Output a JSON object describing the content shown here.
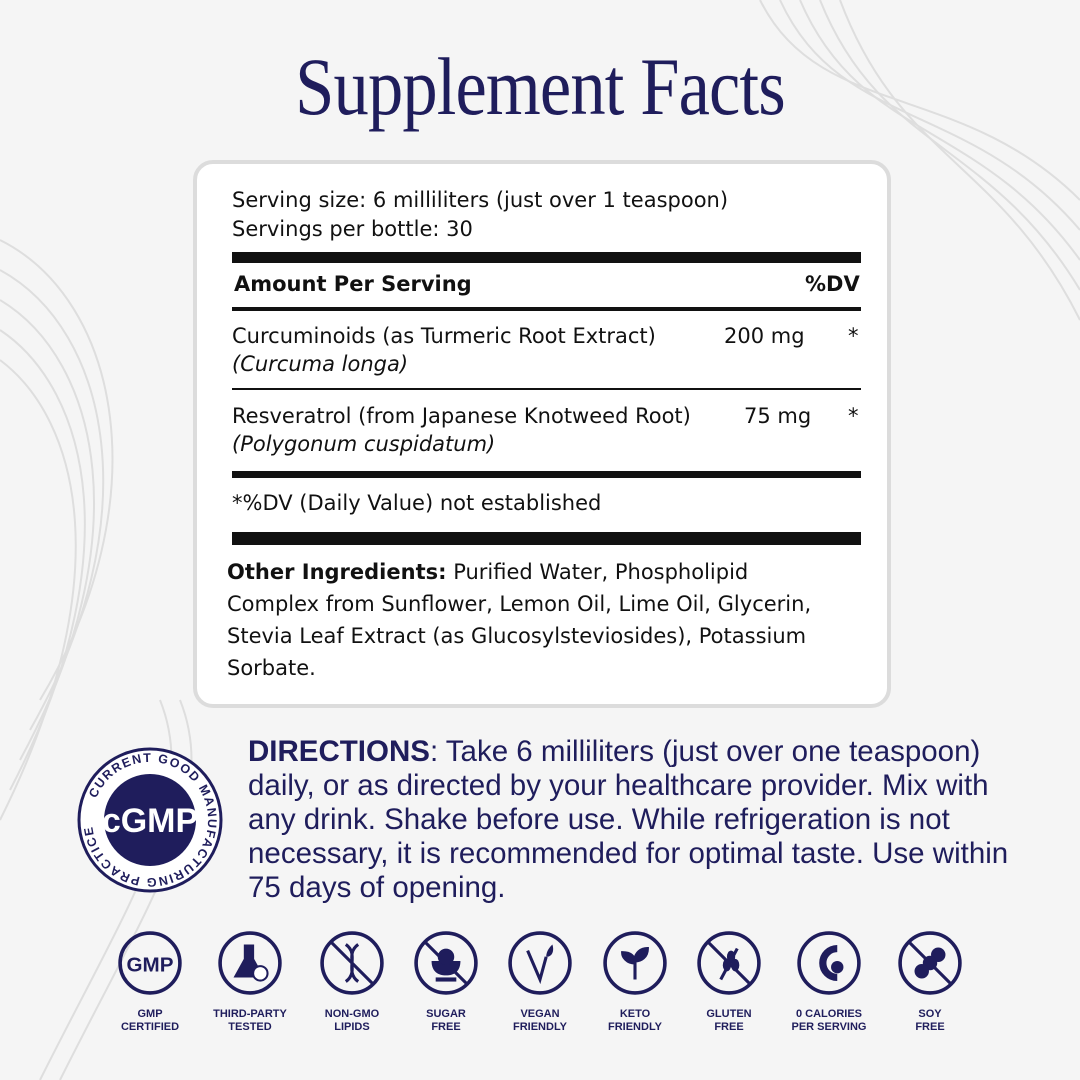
{
  "title": "Supplement Facts",
  "facts": {
    "serving_size": "Serving size: 6 milliliters (just over 1 teaspoon)",
    "servings_per_bottle": "Servings per bottle: 30",
    "header_amount": "Amount Per Serving",
    "header_dv": "%DV",
    "rows": [
      {
        "name": "Curcuminoids (as Turmeric Root Extract)",
        "latin": "(Curcuma longa)",
        "amount": "200 mg",
        "dv": "*"
      },
      {
        "name": "Resveratrol (from Japanese Knotweed Root)",
        "latin": "(Polygonum cuspidatum)",
        "amount": "75 mg",
        "dv": "*"
      }
    ],
    "footnote": "*%DV (Daily Value) not established",
    "other_label": "Other Ingredients:",
    "other_lines": [
      " Purified Water, Phospholipid",
      "Complex from Sunflower, Lemon Oil, Lime Oil, Glycerin,",
      "Stevia Leaf Extract (as Glucosylsteviosides), Potassium",
      "Sorbate."
    ]
  },
  "directions": {
    "label": "DIRECTIONS",
    "text": ": Take 6 milliliters  (just over one teaspoon) daily, or as directed by your healthcare provider. Mix with any drink. Shake before use. While refrigeration is not necessary, it is recommended for optimal taste. Use within 75 days of opening."
  },
  "seal": {
    "center": "cGMP",
    "ring": "CURRENT GOOD MANUFACTURING PRACTICE"
  },
  "badges": [
    {
      "icon": "gmp-icon",
      "l1": "GMP",
      "l2": "CERTIFIED",
      "text": "GMP"
    },
    {
      "icon": "flask-check-icon",
      "l1": "THIRD-PARTY",
      "l2": "TESTED"
    },
    {
      "icon": "dna-crossed-icon",
      "l1": "NON-GMO",
      "l2": "LIPIDS"
    },
    {
      "icon": "sugar-bowl-crossed-icon",
      "l1": "SUGAR",
      "l2": "FREE"
    },
    {
      "icon": "vegan-v-icon",
      "l1": "VEGAN",
      "l2": "FRIENDLY"
    },
    {
      "icon": "leaf-icon",
      "l1": "KETO",
      "l2": "FRIENDLY"
    },
    {
      "icon": "wheat-crossed-icon",
      "l1": "GLUTEN",
      "l2": "FREE"
    },
    {
      "icon": "calorie-check-icon",
      "l1": "0 CALORIES",
      "l2": "PER SERVING"
    },
    {
      "icon": "soy-crossed-icon",
      "l1": "SOY",
      "l2": "FREE"
    }
  ],
  "colors": {
    "brand": "#1f1d5c",
    "background": "#f5f5f5"
  }
}
